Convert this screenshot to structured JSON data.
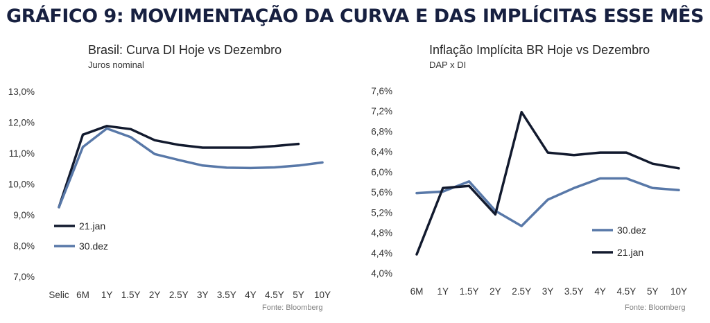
{
  "header": {
    "title": "GRÁFICO 9: MOVIMENTAÇÃO DA CURVA E DAS IMPLÍCITAS ESSE MÊS"
  },
  "colors": {
    "dark": "#121a2e",
    "blue": "#5878a8",
    "title": "#172040"
  },
  "chart_data": [
    {
      "type": "line",
      "title": "Brasil: Curva DI Hoje vs Dezembro",
      "subtitle": "Juros nominal",
      "source": "Fonte: Bloomberg",
      "categories": [
        "Selic",
        "6M",
        "1Y",
        "1.5Y",
        "2Y",
        "2.5Y",
        "3Y",
        "3.5Y",
        "4Y",
        "4.5Y",
        "5Y",
        "10Y"
      ],
      "yticks": [
        "7,0%",
        "8,0%",
        "9,0%",
        "10,0%",
        "11,0%",
        "12,0%",
        "13,0%"
      ],
      "ylim": [
        7.0,
        13.0
      ],
      "grid": false,
      "legend": "bottom-left",
      "series": [
        {
          "name": "21.jan",
          "color": "#121a2e",
          "values": [
            9.25,
            11.6,
            11.88,
            11.78,
            11.42,
            11.27,
            11.18,
            11.18,
            11.18,
            11.23,
            11.3,
            null
          ]
        },
        {
          "name": "30.dez",
          "color": "#5878a8",
          "values": [
            9.25,
            11.2,
            11.8,
            11.52,
            10.97,
            10.78,
            10.6,
            10.53,
            10.52,
            10.54,
            10.6,
            10.7
          ]
        }
      ]
    },
    {
      "type": "line",
      "title": "Inflação Implícita BR Hoje vs Dezembro",
      "subtitle": "DAP x DI",
      "source": "Fonte: Bloomberg",
      "categories": [
        "6M",
        "1Y",
        "1.5Y",
        "2Y",
        "2.5Y",
        "3Y",
        "3.5Y",
        "4Y",
        "4.5Y",
        "5Y",
        "10Y"
      ],
      "yticks": [
        "4,0%",
        "4,4%",
        "4,8%",
        "5,2%",
        "5,6%",
        "6,0%",
        "6,4%",
        "6,8%",
        "7,2%",
        "7,6%"
      ],
      "ylim": [
        4.0,
        7.6
      ],
      "grid": false,
      "legend": "bottom-right",
      "series": [
        {
          "name": "30.dez",
          "color": "#5878a8",
          "values": [
            5.58,
            5.61,
            5.81,
            5.23,
            4.93,
            5.45,
            5.68,
            5.87,
            5.87,
            5.68,
            5.64
          ]
        },
        {
          "name": "21.jan",
          "color": "#121a2e",
          "values": [
            4.37,
            5.68,
            5.72,
            5.16,
            7.18,
            6.38,
            6.33,
            6.38,
            6.38,
            6.16,
            6.07
          ]
        }
      ]
    }
  ]
}
